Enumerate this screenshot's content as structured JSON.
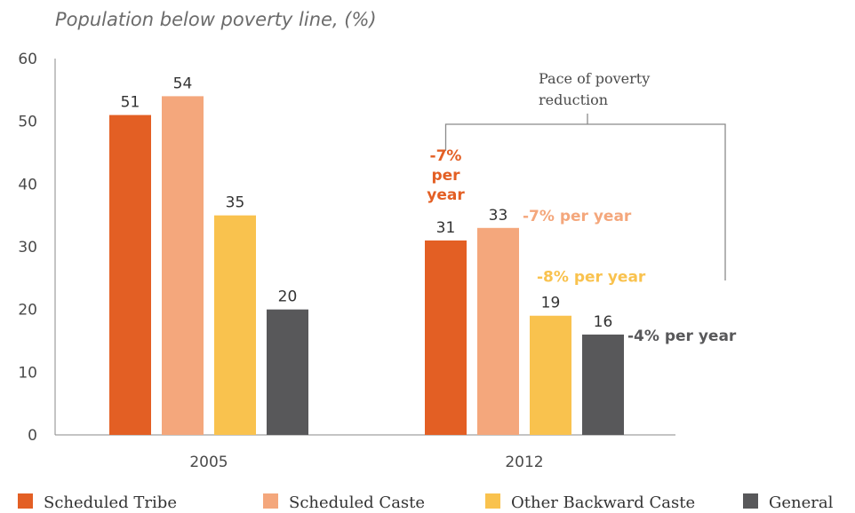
{
  "chart_data": {
    "type": "bar",
    "title": "Population below poverty line, (%)",
    "categories": [
      "2005",
      "2012"
    ],
    "series": [
      {
        "name": "Scheduled Tribe",
        "color": "#E35F24",
        "values": [
          51,
          31
        ]
      },
      {
        "name": "Scheduled Caste",
        "color": "#F4A77C",
        "values": [
          54,
          33
        ]
      },
      {
        "name": "Other Backward Caste",
        "color": "#F9C24E",
        "values": [
          35,
          19
        ]
      },
      {
        "name": "General",
        "color": "#58585A",
        "values": [
          20,
          16
        ]
      }
    ],
    "ylim": [
      0,
      60
    ],
    "yticks": [
      0,
      10,
      20,
      30,
      40,
      50,
      60
    ],
    "grid": false,
    "legend": "bottom",
    "annotation": {
      "lines": [
        "Pace of poverty",
        "reduction"
      ],
      "rates": [
        {
          "series": "Scheduled Tribe",
          "lines": [
            "-7%",
            "per",
            "year"
          ]
        },
        {
          "series": "Scheduled Caste",
          "lines": [
            "-7% per year"
          ]
        },
        {
          "series": "Other Backward Caste",
          "lines": [
            "-8% per year"
          ]
        },
        {
          "series": "General",
          "lines": [
            "-4% per year"
          ]
        }
      ]
    }
  }
}
